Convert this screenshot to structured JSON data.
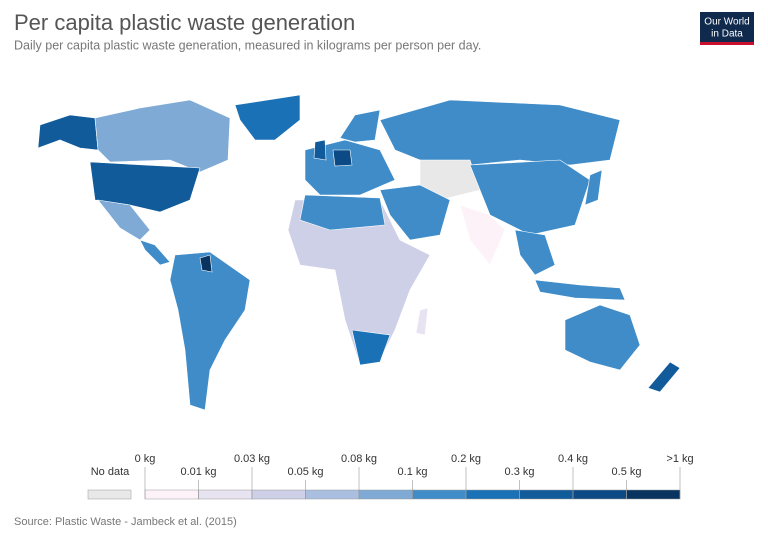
{
  "title": "Per capita plastic waste generation",
  "subtitle": "Daily per capita plastic waste generation, measured in kilograms per person per day.",
  "logo": [
    "Our World",
    "in Data"
  ],
  "legend": {
    "no_data": "No data",
    "no_data_color": "#e8e8e8",
    "labels": [
      "0 kg",
      "0.01 kg",
      "0.03 kg",
      "0.05 kg",
      "0.08 kg",
      "0.1 kg",
      "0.2 kg",
      "0.3 kg",
      "0.4 kg",
      "0.5 kg",
      ">1 kg"
    ],
    "colors": [
      "#fdf2f7",
      "#e7e3f1",
      "#cdd0e7",
      "#aabfdf",
      "#7eaad5",
      "#3f8cc8",
      "#1a71b6",
      "#115b9b",
      "#0b4a85",
      "#08345f"
    ]
  },
  "source": "Source: Plastic Waste - Jambeck et al. (2015)"
}
